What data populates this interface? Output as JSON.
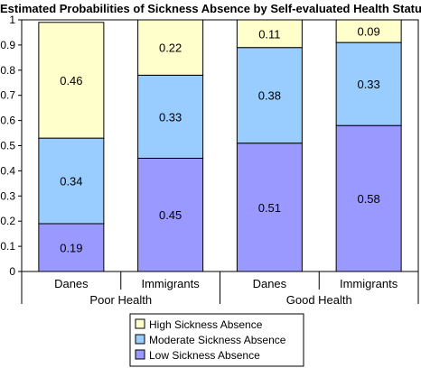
{
  "chart_data": {
    "type": "bar",
    "stacked": true,
    "title": "Estimated Probabilities of Sickness Absence by Self-evaluated Health Status",
    "xlabel": "",
    "ylabel": "",
    "ylim": [
      0,
      1
    ],
    "yticks": [
      "0",
      "0.1",
      "0.2",
      "0.3",
      "0.4",
      "0.5",
      "0.6",
      "0.7",
      "0.8",
      "0.9",
      "1"
    ],
    "grid": false,
    "legend_position": "bottom-center",
    "groups": [
      {
        "label": "Poor Health",
        "categories": [
          "Danes",
          "Immigrants"
        ]
      },
      {
        "label": "Good Health",
        "categories": [
          "Danes",
          "Immigrants"
        ]
      }
    ],
    "categories": [
      "Danes",
      "Immigrants",
      "Danes",
      "Immigrants"
    ],
    "series": [
      {
        "name": "Low Sickness Absence",
        "color": "#9999ff",
        "values": [
          0.19,
          0.45,
          0.51,
          0.58
        ],
        "labels": [
          "0.19",
          "0.45",
          "0.51",
          "0.58"
        ]
      },
      {
        "name": "Moderate Sickness Absence",
        "color": "#99ccff",
        "values": [
          0.34,
          0.33,
          0.38,
          0.33
        ],
        "labels": [
          "0.34",
          "0.33",
          "0.38",
          "0.33"
        ]
      },
      {
        "name": "High Sickness Absence",
        "color": "#ffffcc",
        "values": [
          0.46,
          0.22,
          0.11,
          0.09
        ],
        "labels": [
          "0.46",
          "0.22",
          "0.11",
          "0.09"
        ]
      }
    ],
    "legend_order": [
      "High Sickness Absence",
      "Moderate Sickness Absence",
      "Low Sickness Absence"
    ]
  }
}
